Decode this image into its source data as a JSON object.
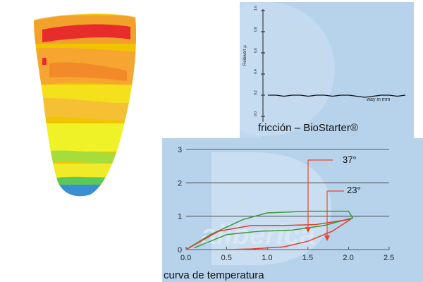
{
  "friction": {
    "caption": "fricción – BioStarter®",
    "ylabel": "Reibwert µ",
    "xlabel": "way in mm",
    "yticks": [
      "1,0",
      "0,8",
      "0,6",
      "0,4",
      "0,2",
      "0,0"
    ]
  },
  "temperature": {
    "caption": "curva de temperatura",
    "yticks": [
      "3",
      "2",
      "1",
      "0"
    ],
    "xticks": [
      "0.0",
      "0.5",
      "1.0",
      "1.5",
      "2.0",
      "2.5"
    ],
    "labels": {
      "t37": "37°",
      "t23": "23°"
    }
  },
  "colors": {
    "panel": "#b7d2eb",
    "green_curve": "#3a9a3a",
    "red_curve": "#e0402c",
    "arrow": "#e8452b"
  },
  "chart_data": [
    {
      "type": "line",
      "title": "fricción – BioStarter®",
      "ylabel": "Reibwert µ",
      "xlabel": "way in mm",
      "ylim": [
        0,
        1.0
      ],
      "series": [
        {
          "values": [
            0.2,
            0.2,
            0.19,
            0.2,
            0.2,
            0.19,
            0.2,
            0.2,
            0.19,
            0.2,
            0.2,
            0.19,
            0.18,
            0.19,
            0.2,
            0.2,
            0.19,
            0.2
          ]
        }
      ]
    },
    {
      "type": "line",
      "title": "curva de temperatura",
      "xlim": [
        0,
        2.5
      ],
      "ylim": [
        0,
        3
      ],
      "series": [
        {
          "name": "37°",
          "x": [
            0.0,
            0.3,
            0.7,
            1.0,
            1.5,
            2.0,
            2.05,
            1.7,
            1.3,
            0.9,
            0.5,
            0.1
          ],
          "y": [
            0.0,
            0.45,
            0.9,
            1.1,
            1.15,
            1.15,
            0.95,
            0.72,
            0.58,
            0.55,
            0.45,
            0.05
          ]
        },
        {
          "name": "23°",
          "x": [
            0.0,
            0.4,
            0.8,
            1.2,
            1.6,
            2.0,
            2.02,
            1.8,
            1.5,
            1.2,
            0.8,
            0.5
          ],
          "y": [
            0.0,
            0.55,
            0.72,
            0.72,
            0.75,
            0.9,
            0.9,
            0.55,
            0.25,
            0.08,
            0.02,
            0.0
          ]
        }
      ]
    }
  ]
}
